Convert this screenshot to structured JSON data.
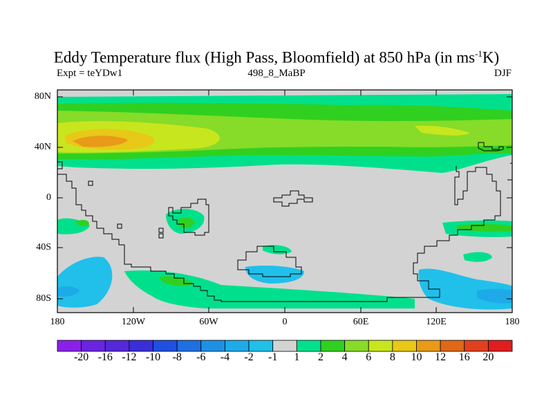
{
  "title_main": "Eddy Temperature flux (High Pass, Bloomfield) at 850 hPa (in ms",
  "title_sup": "-1",
  "title_end": "K)",
  "left_sub": "Expt = teYDw1",
  "center_sub": "498_8_MaBP",
  "right_sub": "DJF",
  "lat_labels": [
    "80N",
    "40N",
    "0",
    "40S",
    "80S"
  ],
  "lon_labels": [
    "180",
    "120W",
    "60W",
    "0",
    "60E",
    "120E",
    "180"
  ],
  "colorbar": {
    "colors": [
      "#8a20e8",
      "#6a24e0",
      "#5528d8",
      "#3a2ed8",
      "#1f50e0",
      "#1e6fe0",
      "#1e90e4",
      "#1eaae8",
      "#20c0ea",
      "#d3d3d3",
      "#00e08c",
      "#30d020",
      "#86dc28",
      "#c8e61e",
      "#e8c818",
      "#e89a18",
      "#e06818",
      "#e0401e",
      "#e01e1e"
    ],
    "labels": [
      "-20",
      "-16",
      "-12",
      "-10",
      "-8",
      "-6",
      "-4",
      "-2",
      "-1",
      "1",
      "2",
      "4",
      "6",
      "8",
      "10",
      "12",
      "16",
      "20"
    ]
  }
}
